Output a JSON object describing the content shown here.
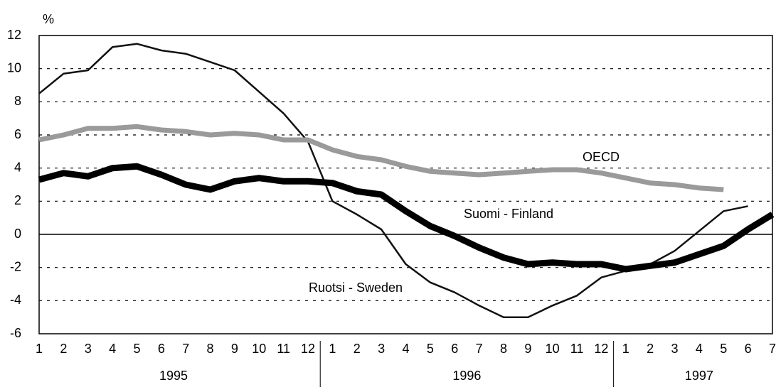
{
  "chart_data": {
    "type": "line",
    "y_label": "%",
    "categories": [
      "1",
      "2",
      "3",
      "4",
      "5",
      "6",
      "7",
      "8",
      "9",
      "10",
      "11",
      "12",
      "1",
      "2",
      "3",
      "4",
      "5",
      "6",
      "7",
      "8",
      "9",
      "10",
      "11",
      "12",
      "1",
      "2",
      "3",
      "4",
      "5",
      "6",
      "7"
    ],
    "years": [
      "1995",
      "1996",
      "1997"
    ],
    "series": [
      {
        "name": "Ruotsi - Sweden",
        "color": "#111111",
        "values": [
          8.5,
          9.7,
          9.9,
          11.3,
          11.5,
          11.1,
          10.9,
          10.4,
          9.9,
          8.6,
          7.3,
          5.6,
          2.0,
          1.2,
          0.3,
          -1.8,
          -2.9,
          -3.5,
          -4.3,
          -5.0,
          -5.0,
          -4.3,
          -3.7,
          -2.6,
          -2.2,
          -1.8,
          -1.0,
          0.2,
          1.4,
          1.7,
          null
        ]
      },
      {
        "name": "Suomi - Finland",
        "color": "#000000",
        "values": [
          3.3,
          3.7,
          3.5,
          4.0,
          4.1,
          3.6,
          3.0,
          2.7,
          3.2,
          3.4,
          3.2,
          3.2,
          3.1,
          2.6,
          2.4,
          1.4,
          0.5,
          -0.1,
          -0.8,
          -1.4,
          -1.8,
          -1.7,
          -1.8,
          -1.8,
          -2.1,
          -1.9,
          -1.7,
          -1.2,
          -0.7,
          0.3,
          1.2
        ]
      },
      {
        "name": "OECD",
        "color": "#9a9a9a",
        "values": [
          5.7,
          6.0,
          6.4,
          6.4,
          6.5,
          6.3,
          6.2,
          6.0,
          6.1,
          6.0,
          5.7,
          5.7,
          5.1,
          4.7,
          4.5,
          4.1,
          3.8,
          3.7,
          3.6,
          3.7,
          3.8,
          3.9,
          3.9,
          3.7,
          3.4,
          3.1,
          3.0,
          2.8,
          2.7,
          null,
          null
        ]
      }
    ],
    "ylim": [
      -6,
      12
    ],
    "yticks": [
      -6,
      -4,
      -2,
      0,
      2,
      4,
      6,
      8,
      10,
      12
    ],
    "grid": true
  }
}
